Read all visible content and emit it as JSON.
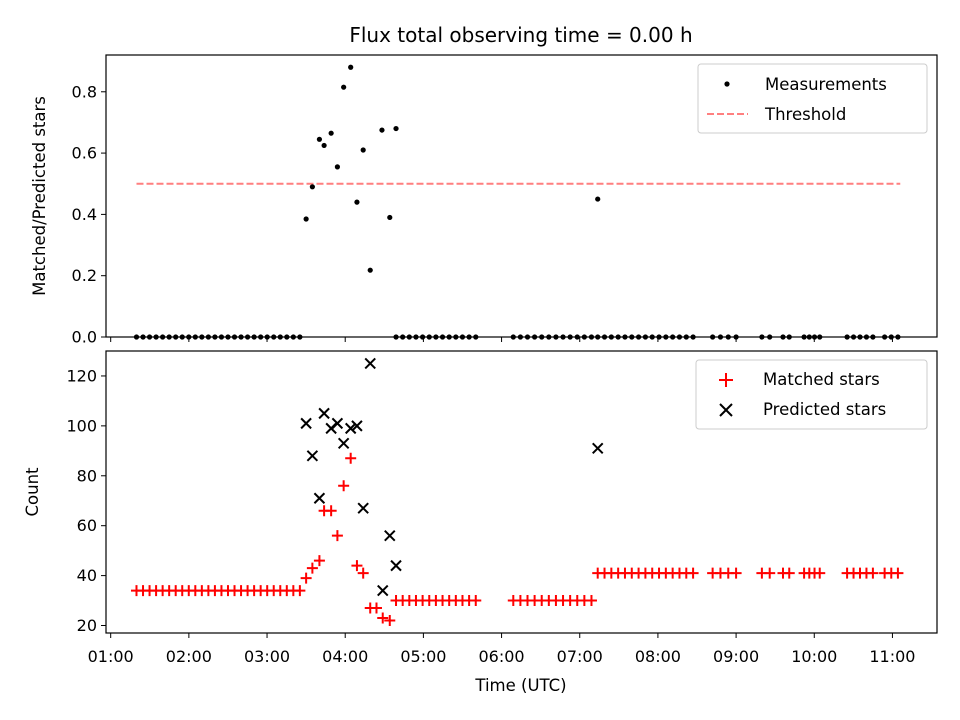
{
  "title": "Flux total observing time = 0.00 h",
  "chart_data": [
    {
      "type": "scatter",
      "ylabel": "Matched/Predicted stars",
      "ylim": [
        0,
        0.92
      ],
      "yticks": [
        0.0,
        0.2,
        0.4,
        0.6,
        0.8
      ],
      "ytick_labels": [
        "0.0",
        "0.2",
        "0.4",
        "0.6",
        "0.8"
      ],
      "xlim": [
        0.94,
        11.57
      ],
      "threshold": {
        "value": 0.5,
        "x_range": [
          1.33,
          11.1
        ],
        "color": "#ff7f7f",
        "name": "Threshold"
      },
      "legend": {
        "placement": "top-right",
        "items": [
          {
            "name": "Measurements",
            "marker": "dot"
          },
          {
            "name": "Threshold",
            "marker": "dash"
          }
        ]
      },
      "series": [
        {
          "name": "Measurements",
          "color": "#000000",
          "x": [
            3.5,
            3.58,
            3.67,
            3.73,
            3.82,
            3.9,
            3.98,
            4.07,
            4.15,
            4.23,
            4.32,
            4.47,
            4.57,
            4.65,
            7.23
          ],
          "y": [
            0.385,
            0.49,
            0.645,
            0.625,
            0.665,
            0.555,
            0.815,
            0.88,
            0.44,
            0.61,
            0.218,
            0.675,
            0.39,
            0.68,
            0.45
          ]
        }
      ]
    },
    {
      "type": "scatter",
      "ylabel": "Count",
      "xlabel": "Time (UTC)",
      "ylim": [
        17,
        130
      ],
      "yticks": [
        20,
        40,
        60,
        80,
        100,
        120
      ],
      "ytick_labels": [
        "20",
        "40",
        "60",
        "80",
        "100",
        "120"
      ],
      "xlim": [
        0.94,
        11.57
      ],
      "xticks": [
        1,
        2,
        3,
        4,
        5,
        6,
        7,
        8,
        9,
        10,
        11
      ],
      "xtick_labels": [
        "01:00",
        "02:00",
        "03:00",
        "04:00",
        "05:00",
        "06:00",
        "07:00",
        "08:00",
        "09:00",
        "10:00",
        "11:00"
      ],
      "legend": {
        "placement": "top-right",
        "items": [
          {
            "name": "Matched stars",
            "marker": "plus"
          },
          {
            "name": "Predicted stars",
            "marker": "x"
          }
        ]
      },
      "series": [
        {
          "name": "Matched stars",
          "color": "#ff0000",
          "x": [
            3.5,
            3.58,
            3.67,
            3.73,
            3.82,
            3.9,
            3.98,
            4.07,
            4.15,
            4.23,
            4.32,
            4.4,
            4.48,
            4.57
          ],
          "y": [
            39,
            43,
            46,
            66,
            66,
            56,
            76,
            87,
            44,
            41,
            27,
            27,
            23,
            22
          ]
        },
        {
          "name": "Predicted stars",
          "color": "#000000",
          "x": [
            3.5,
            3.58,
            3.67,
            3.73,
            3.82,
            3.9,
            3.98,
            4.07,
            4.15,
            4.23,
            4.32,
            4.48,
            4.57,
            4.65,
            7.23
          ],
          "y": [
            101,
            88,
            71,
            105,
            99,
            101,
            93,
            99,
            100,
            67,
            125,
            34,
            56,
            44,
            91
          ]
        }
      ],
      "baseline_groups": [
        {
          "matched": 34,
          "ratio": 0,
          "x_start": 1.33,
          "x_end": 3.42,
          "count": 26
        },
        {
          "matched": 30,
          "ratio": 0,
          "x_start": 4.65,
          "x_end": 5.67,
          "count": 13
        },
        {
          "matched": 30,
          "ratio": 0,
          "x_start": 6.15,
          "x_end": 7.15,
          "count": 12
        },
        {
          "matched": 41,
          "ratio": 0,
          "x_start": 7.23,
          "x_end": 8.45,
          "count": 15
        },
        {
          "matched": 41,
          "ratio": 0,
          "x_start": 8.7,
          "x_end": 9.0,
          "count": 4
        },
        {
          "matched": 41,
          "ratio": 0,
          "x_start": 9.33,
          "x_end": 9.43,
          "count": 2
        },
        {
          "matched": 41,
          "ratio": 0,
          "x_start": 9.6,
          "x_end": 9.68,
          "count": 2
        },
        {
          "matched": 41,
          "ratio": 0,
          "x_start": 9.87,
          "x_end": 10.07,
          "count": 4
        },
        {
          "matched": 41,
          "ratio": 0,
          "x_start": 10.42,
          "x_end": 10.75,
          "count": 5
        },
        {
          "matched": 41,
          "ratio": 0,
          "x_start": 10.9,
          "x_end": 11.07,
          "count": 3
        }
      ]
    }
  ]
}
